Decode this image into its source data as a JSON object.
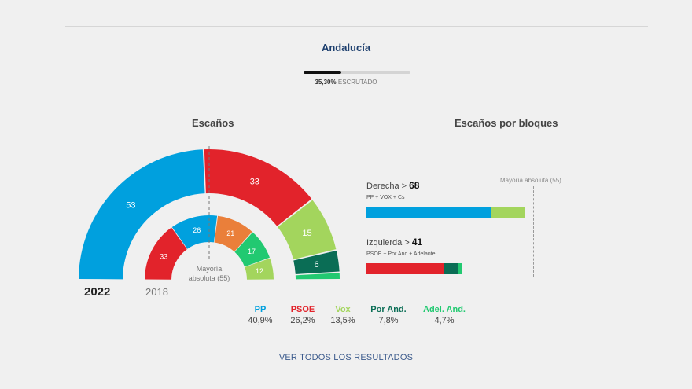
{
  "header": {
    "region": "Andalucía",
    "progress_pct": "35,30%",
    "progress_text": "ESCRUTADO",
    "progress_fraction": 0.353
  },
  "titles": {
    "seats": "Escaños",
    "blocks": "Escaños por bloques"
  },
  "colors": {
    "PP": "#00a0de",
    "PSOE": "#e2232b",
    "Vox": "#a3d55d",
    "Cs": "#ea7f3a",
    "PorAnd": "#0a6d55",
    "Adelante": "#22c971"
  },
  "chart_data": [
    {
      "type": "pie",
      "name": "2022",
      "total": 109,
      "slices": [
        {
          "party": "PP",
          "seats": 53,
          "color": "#00a0de"
        },
        {
          "party": "PSOE",
          "seats": 33,
          "color": "#e2232b"
        },
        {
          "party": "Vox",
          "seats": 15,
          "color": "#a3d55d"
        },
        {
          "party": "Por And.",
          "seats": 6,
          "color": "#0a6d55"
        },
        {
          "party": "Adel. And.",
          "seats": 2,
          "color": "#22c971"
        }
      ]
    },
    {
      "type": "pie",
      "name": "2018",
      "total": 109,
      "slices": [
        {
          "party": "PSOE",
          "seats": 33,
          "color": "#e2232b"
        },
        {
          "party": "PP",
          "seats": 26,
          "color": "#00a0de"
        },
        {
          "party": "Cs",
          "seats": 21,
          "color": "#ea7f3a"
        },
        {
          "party": "Adelante",
          "seats": 17,
          "color": "#22c971"
        },
        {
          "party": "Vox",
          "seats": 12,
          "color": "#a3d55d"
        }
      ]
    },
    {
      "type": "bar",
      "title": "Escaños por bloques",
      "majority": 55,
      "majority_label": "Mayoría absoluta (55)",
      "max": 109,
      "blocks": [
        {
          "label": "Derecha",
          "total": 68,
          "members": "PP + VOX + Cs",
          "segments": [
            {
              "party": "PP",
              "seats": 53,
              "color": "#00a0de"
            },
            {
              "party": "Vox",
              "seats": 15,
              "color": "#a3d55d"
            }
          ]
        },
        {
          "label": "Izquierda",
          "total": 41,
          "members": "PSOE + Por And + Adelante",
          "segments": [
            {
              "party": "PSOE",
              "seats": 33,
              "color": "#e2232b"
            },
            {
              "party": "Por And.",
              "seats": 6,
              "color": "#0a6d55"
            },
            {
              "party": "Adel. And.",
              "seats": 2,
              "color": "#22c971"
            }
          ]
        }
      ]
    }
  ],
  "majority_label": "Mayoría absoluta (55)",
  "majority_line1": "Mayoría",
  "majority_line2": "absoluta (55)",
  "years": {
    "current": "2022",
    "previous": "2018"
  },
  "legend": [
    {
      "party": "PP",
      "pct": "40,9%",
      "color": "#00a0de"
    },
    {
      "party": "PSOE",
      "pct": "26,2%",
      "color": "#e2232b"
    },
    {
      "party": "Vox",
      "pct": "13,5%",
      "color": "#a3d55d"
    },
    {
      "party": "Por And.",
      "pct": "7,8%",
      "color": "#0a6d55"
    },
    {
      "party": "Adel. And.",
      "pct": "4,7%",
      "color": "#22c971"
    }
  ],
  "link": {
    "label": "VER TODOS LOS RESULTADOS"
  }
}
